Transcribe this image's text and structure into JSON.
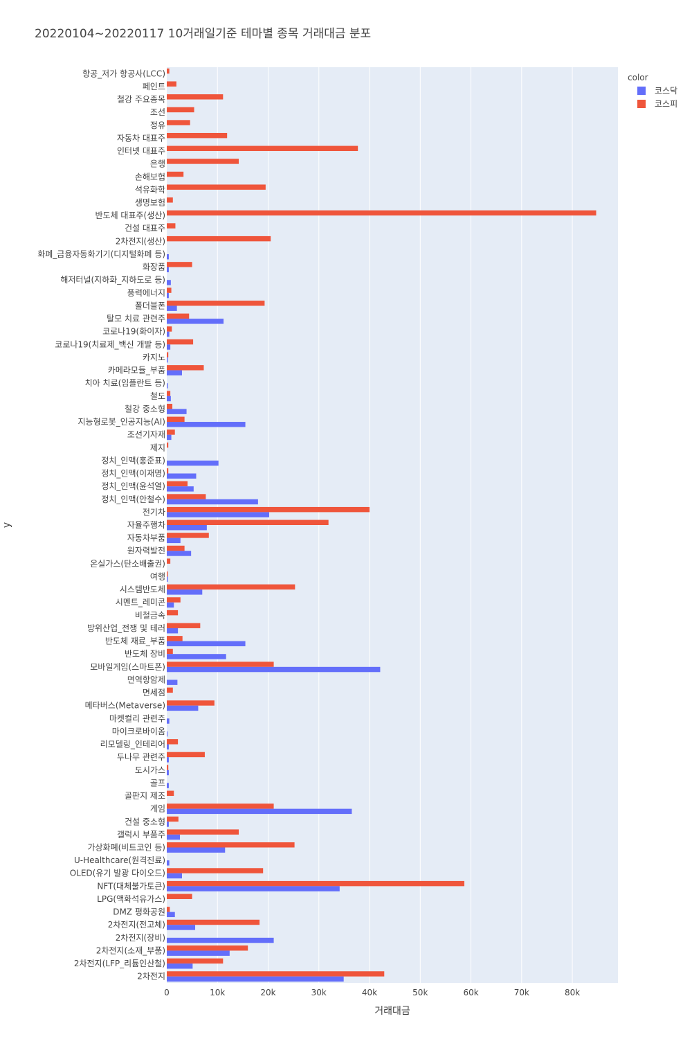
{
  "chart_data": {
    "type": "bar",
    "orientation": "horizontal",
    "barmode": "group",
    "title": "20220104~20220117 10거래일기준 테마별 종목 거래대금 분포",
    "xlabel": "거래대금",
    "ylabel": "y",
    "xlim": [
      0,
      89000
    ],
    "x_ticks": [
      0,
      10000,
      20000,
      30000,
      40000,
      50000,
      60000,
      70000,
      80000
    ],
    "x_tick_labels": [
      "0",
      "10k",
      "20k",
      "30k",
      "40k",
      "50k",
      "60k",
      "70k",
      "80k"
    ],
    "grid": true,
    "legend": {
      "title": "color",
      "position": "top-right"
    },
    "series": [
      {
        "name": "코스닥",
        "color": "#636efa"
      },
      {
        "name": "코스피",
        "color": "#ef553b"
      }
    ],
    "categories": [
      "항공_저가 항공사(LCC)",
      "페인트",
      "철강 주요종목",
      "조선",
      "정유",
      "자동차 대표주",
      "인터넷 대표주",
      "은행",
      "손해보험",
      "석유화학",
      "생명보험",
      "반도체 대표주(생산)",
      "건설 대표주",
      "2차전지(생산)",
      "화폐_금융자동화기기(디지털화폐 등)",
      "화장품",
      "해저터널(지하화_지하도로 등)",
      "풍력에너지",
      "폴더블폰",
      "탈모 치료 관련주",
      "코로나19(화이자)",
      "코로나19(치료제_백신 개발 등)",
      "카지노",
      "카메라모듈_부품",
      "치아 치료(임플란트 등)",
      "철도",
      "철강 중소형",
      "지능형로봇_인공지능(AI)",
      "조선기자재",
      "제지",
      "정치_인맥(홍준표)",
      "정치_인맥(이재명)",
      "정치_인맥(윤석열)",
      "정치_인맥(안철수)",
      "전기차",
      "자율주행차",
      "자동차부품",
      "원자력발전",
      "온실가스(탄소배출권)",
      "여행",
      "시스템반도체",
      "시멘트_레미콘",
      "비철금속",
      "방위산업_전쟁 및 테러",
      "반도체 재료_부품",
      "반도체 장비",
      "모바일게임(스마트폰)",
      "면역항암제",
      "면세점",
      "메타버스(Metaverse)",
      "마켓컬리 관련주",
      "마이크로바이옴",
      "리모델링_인테리어",
      "두나무 관련주",
      "도시가스",
      "골프",
      "골판지 제조",
      "게임",
      "건설 중소형",
      "갤럭시 부품주",
      "가상화폐(비트코인 등)",
      "U-Healthcare(원격진료)",
      "OLED(유기 발광 다이오드)",
      "NFT(대체불가토큰)",
      "LPG(액화석유가스)",
      "DMZ 평화공원",
      "2차전지(전고체)",
      "2차전지(장비)",
      "2차전지(소재_부품)",
      "2차전지(LFP_리튬인산철)",
      "2차전지"
    ],
    "kosdaq": [
      0,
      0,
      0,
      0,
      0,
      0,
      0,
      0,
      0,
      0,
      0,
      0,
      0,
      0,
      400,
      400,
      800,
      400,
      2000,
      11200,
      500,
      700,
      200,
      3000,
      200,
      800,
      3900,
      15500,
      900,
      0,
      10200,
      5800,
      5300,
      18000,
      20200,
      7900,
      2700,
      4800,
      0,
      200,
      7000,
      1400,
      0,
      2200,
      15500,
      11700,
      42100,
      2100,
      0,
      6200,
      500,
      150,
      400,
      400,
      400,
      400,
      0,
      36500,
      400,
      2600,
      11500,
      500,
      3000,
      34100,
      0,
      1600,
      5600,
      21100,
      12400,
      5100,
      34900
    ],
    "kospi": [
      500,
      1900,
      11100,
      5400,
      4600,
      11900,
      37700,
      14200,
      3300,
      19500,
      1200,
      84700,
      1700,
      20500,
      0,
      5000,
      0,
      900,
      19300,
      4400,
      1000,
      5200,
      300,
      7300,
      0,
      700,
      1100,
      3500,
      1600,
      300,
      0,
      300,
      4100,
      7700,
      40000,
      31900,
      8300,
      3500,
      700,
      200,
      25300,
      2700,
      2200,
      6600,
      3100,
      1200,
      21100,
      0,
      1200,
      9400,
      0,
      0,
      2200,
      7500,
      300,
      0,
      1400,
      21100,
      2300,
      14200,
      25200,
      0,
      19000,
      58700,
      5000,
      600,
      18300,
      0,
      16000,
      11100,
      42900
    ]
  }
}
